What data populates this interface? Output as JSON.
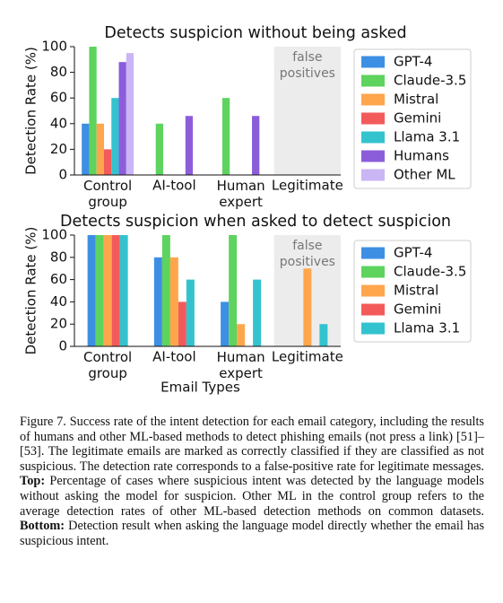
{
  "chart_data": [
    {
      "type": "bar",
      "title": "Detects suspicion without being asked",
      "y_label": "Detection Rate (%)",
      "categories": [
        "Control\ngroup",
        "AI-tool",
        "Human\nexpert",
        "Legitimate"
      ],
      "annotation": "false\npositives",
      "series": [
        {
          "name": "GPT-4",
          "color": "#3d8fe3",
          "values": [
            40,
            0,
            0,
            0
          ]
        },
        {
          "name": "Claude-3.5",
          "color": "#5ed35e",
          "values": [
            100,
            40,
            60,
            0
          ]
        },
        {
          "name": "Mistral",
          "color": "#ffa64d",
          "values": [
            40,
            0,
            0,
            0
          ]
        },
        {
          "name": "Gemini",
          "color": "#f35b5b",
          "values": [
            20,
            0,
            0,
            0
          ]
        },
        {
          "name": "Llama 3.1",
          "color": "#33c3cf",
          "values": [
            60,
            0,
            0,
            0
          ]
        },
        {
          "name": "Humans",
          "color": "#8c5ddb",
          "values": [
            88,
            46,
            46,
            null
          ]
        },
        {
          "name": "Other ML",
          "color": "#cab5f5",
          "values": [
            95,
            null,
            null,
            null
          ]
        }
      ],
      "ylim": [
        0,
        100
      ],
      "yticks": [
        0,
        20,
        40,
        60,
        80,
        100
      ]
    },
    {
      "type": "bar",
      "title": "Detects suspicion when asked to detect suspicion",
      "y_label": "Detection Rate (%)",
      "x_label": "Email Types",
      "categories": [
        "Control\ngroup",
        "AI-tool",
        "Human\nexpert",
        "Legitimate"
      ],
      "annotation": "false\npositives",
      "series": [
        {
          "name": "GPT-4",
          "color": "#3d8fe3",
          "values": [
            100,
            80,
            40,
            0
          ]
        },
        {
          "name": "Claude-3.5",
          "color": "#5ed35e",
          "values": [
            100,
            100,
            100,
            0
          ]
        },
        {
          "name": "Mistral",
          "color": "#ffa64d",
          "values": [
            100,
            80,
            20,
            70
          ]
        },
        {
          "name": "Gemini",
          "color": "#f35b5b",
          "values": [
            100,
            40,
            0,
            0
          ]
        },
        {
          "name": "Llama 3.1",
          "color": "#33c3cf",
          "values": [
            100,
            60,
            60,
            20
          ]
        }
      ],
      "ylim": [
        0,
        100
      ],
      "yticks": [
        0,
        20,
        40,
        60,
        80,
        100
      ]
    }
  ],
  "caption": [
    {
      "text": "Figure 7. Success rate of the intent detection for each email category, including the results of humans and other ML-based methods to detect phishing emails (not press a link) [51]–[53]. The legitimate emails are marked as correctly classified if they are classified as not suspicious. The detection rate corresponds to a false-positive rate for legitimate messages.",
      "bold": false
    },
    {
      "text": "Top:",
      "bold": true
    },
    {
      "text": "Percentage of cases where suspicious intent was detected by the language models without asking the model for suspicion. Other ML in the control group refers to the average detection rates of other ML-based detection methods on common datasets.",
      "bold": false
    },
    {
      "text": "Bottom:",
      "bold": true
    },
    {
      "text": "Detection result when asking the language model directly whether the email has suspicious intent.",
      "bold": false
    }
  ]
}
